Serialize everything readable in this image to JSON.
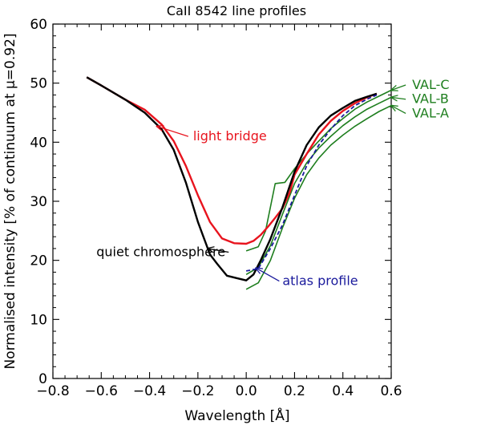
{
  "chart_data": {
    "type": "line",
    "title": "CaII 8542 line profiles",
    "xlabel": "Wavelength [Å]",
    "ylabel": "Normalised intensity [% of continuum at μ=0.92]",
    "xlim": [
      -0.8,
      0.6
    ],
    "ylim": [
      0,
      60
    ],
    "x_ticks": [
      -0.8,
      -0.6,
      -0.4,
      -0.2,
      0.0,
      0.2,
      0.4,
      0.6
    ],
    "x_tick_labels": [
      "−0.8",
      "−0.6",
      "−0.4",
      "−0.2",
      "0.0",
      "0.2",
      "0.4",
      "0.6"
    ],
    "y_ticks": [
      0,
      10,
      20,
      30,
      40,
      50,
      60
    ],
    "y_tick_labels": [
      "0",
      "10",
      "20",
      "30",
      "40",
      "50",
      "60"
    ],
    "grid": false,
    "series": [
      {
        "name": "quiet chromosphere",
        "color": "#000000",
        "style": "solid",
        "x": [
          -0.66,
          -0.6,
          -0.5,
          -0.42,
          -0.35,
          -0.3,
          -0.25,
          -0.2,
          -0.15,
          -0.12,
          -0.08,
          -0.04,
          0.0,
          0.03,
          0.06,
          0.1,
          0.15,
          0.2,
          0.25,
          0.3,
          0.35,
          0.4,
          0.45,
          0.5,
          0.54
        ],
        "values": [
          51.0,
          49.6,
          47.2,
          45.0,
          42.2,
          38.7,
          33.2,
          26.5,
          21.0,
          19.4,
          17.4,
          17.0,
          16.6,
          17.6,
          20.0,
          23.6,
          29.0,
          35.0,
          39.5,
          42.5,
          44.5,
          45.8,
          47.0,
          47.7,
          48.2
        ]
      },
      {
        "name": "light bridge",
        "color": "#e8141e",
        "style": "solid",
        "x": [
          -0.66,
          -0.6,
          -0.5,
          -0.42,
          -0.35,
          -0.3,
          -0.25,
          -0.2,
          -0.15,
          -0.1,
          -0.05,
          0.0,
          0.03,
          0.06,
          0.09,
          0.12,
          0.15,
          0.18,
          0.2,
          0.25,
          0.3,
          0.35,
          0.4,
          0.45,
          0.5,
          0.54
        ],
        "values": [
          51.0,
          49.6,
          47.2,
          45.5,
          43.0,
          40.2,
          36.0,
          31.0,
          26.5,
          23.7,
          22.9,
          22.8,
          23.3,
          24.3,
          25.7,
          27.2,
          28.8,
          31.5,
          34.5,
          38.0,
          41.3,
          43.6,
          45.3,
          46.6,
          47.6,
          48.2
        ]
      },
      {
        "name": "atlas profile",
        "color": "#1a1a9c",
        "style": "dashed",
        "x": [
          0.0,
          0.05,
          0.1,
          0.15,
          0.2,
          0.25,
          0.3,
          0.35,
          0.4,
          0.45,
          0.5,
          0.54
        ],
        "values": [
          18.2,
          18.6,
          22.0,
          26.0,
          31.0,
          36.0,
          39.5,
          42.2,
          44.5,
          46.2,
          47.3,
          48.0
        ]
      },
      {
        "name": "VAL-C",
        "color": "#1e7e1e",
        "style": "solid",
        "x": [
          0.0,
          0.05,
          0.08,
          0.12,
          0.16,
          0.2,
          0.25,
          0.3,
          0.35,
          0.4,
          0.45,
          0.5,
          0.55,
          0.6
        ],
        "values": [
          21.6,
          22.3,
          25.0,
          33.0,
          33.2,
          35.5,
          38.0,
          40.2,
          42.3,
          44.0,
          45.6,
          46.8,
          47.8,
          48.8
        ]
      },
      {
        "name": "VAL-B",
        "color": "#1e7e1e",
        "style": "solid",
        "x": [
          0.0,
          0.05,
          0.1,
          0.15,
          0.2,
          0.25,
          0.3,
          0.35,
          0.4,
          0.45,
          0.5,
          0.55,
          0.6
        ],
        "values": [
          17.6,
          18.8,
          22.5,
          27.8,
          33.0,
          36.5,
          39.0,
          41.0,
          42.8,
          44.3,
          45.6,
          46.6,
          47.6
        ]
      },
      {
        "name": "VAL-A",
        "color": "#1e7e1e",
        "style": "solid",
        "x": [
          0.0,
          0.05,
          0.1,
          0.15,
          0.2,
          0.25,
          0.3,
          0.35,
          0.4,
          0.45,
          0.5,
          0.55,
          0.6
        ],
        "values": [
          15.1,
          16.2,
          20.0,
          25.5,
          30.5,
          34.5,
          37.3,
          39.5,
          41.2,
          42.7,
          44.0,
          45.2,
          46.2
        ]
      }
    ],
    "annotations": [
      {
        "text": "light bridge",
        "color": "#e8141e",
        "label_at": [
          -0.22,
          40.3
        ],
        "arrow_to": [
          -0.37,
          42.7
        ]
      },
      {
        "text": "quiet chromosphere",
        "color": "#000000",
        "label_at": [
          -0.62,
          20.7
        ],
        "arrow_to": [
          -0.16,
          22.0
        ]
      },
      {
        "text": "atlas profile",
        "color": "#1a1a9c",
        "label_at": [
          0.15,
          15.8
        ],
        "arrow_to": [
          0.04,
          18.7
        ]
      },
      {
        "text": "VAL-C",
        "color": "#1e7e1e",
        "label_at": [
          0.68,
          49.0
        ],
        "arrow_to": [
          0.6,
          48.8
        ]
      },
      {
        "text": "VAL-B",
        "color": "#1e7e1e",
        "label_at": [
          0.68,
          46.6
        ],
        "arrow_to": [
          0.6,
          47.6
        ]
      },
      {
        "text": "VAL-A",
        "color": "#1e7e1e",
        "label_at": [
          0.68,
          44.2
        ],
        "arrow_to": [
          0.6,
          46.2
        ]
      }
    ]
  }
}
